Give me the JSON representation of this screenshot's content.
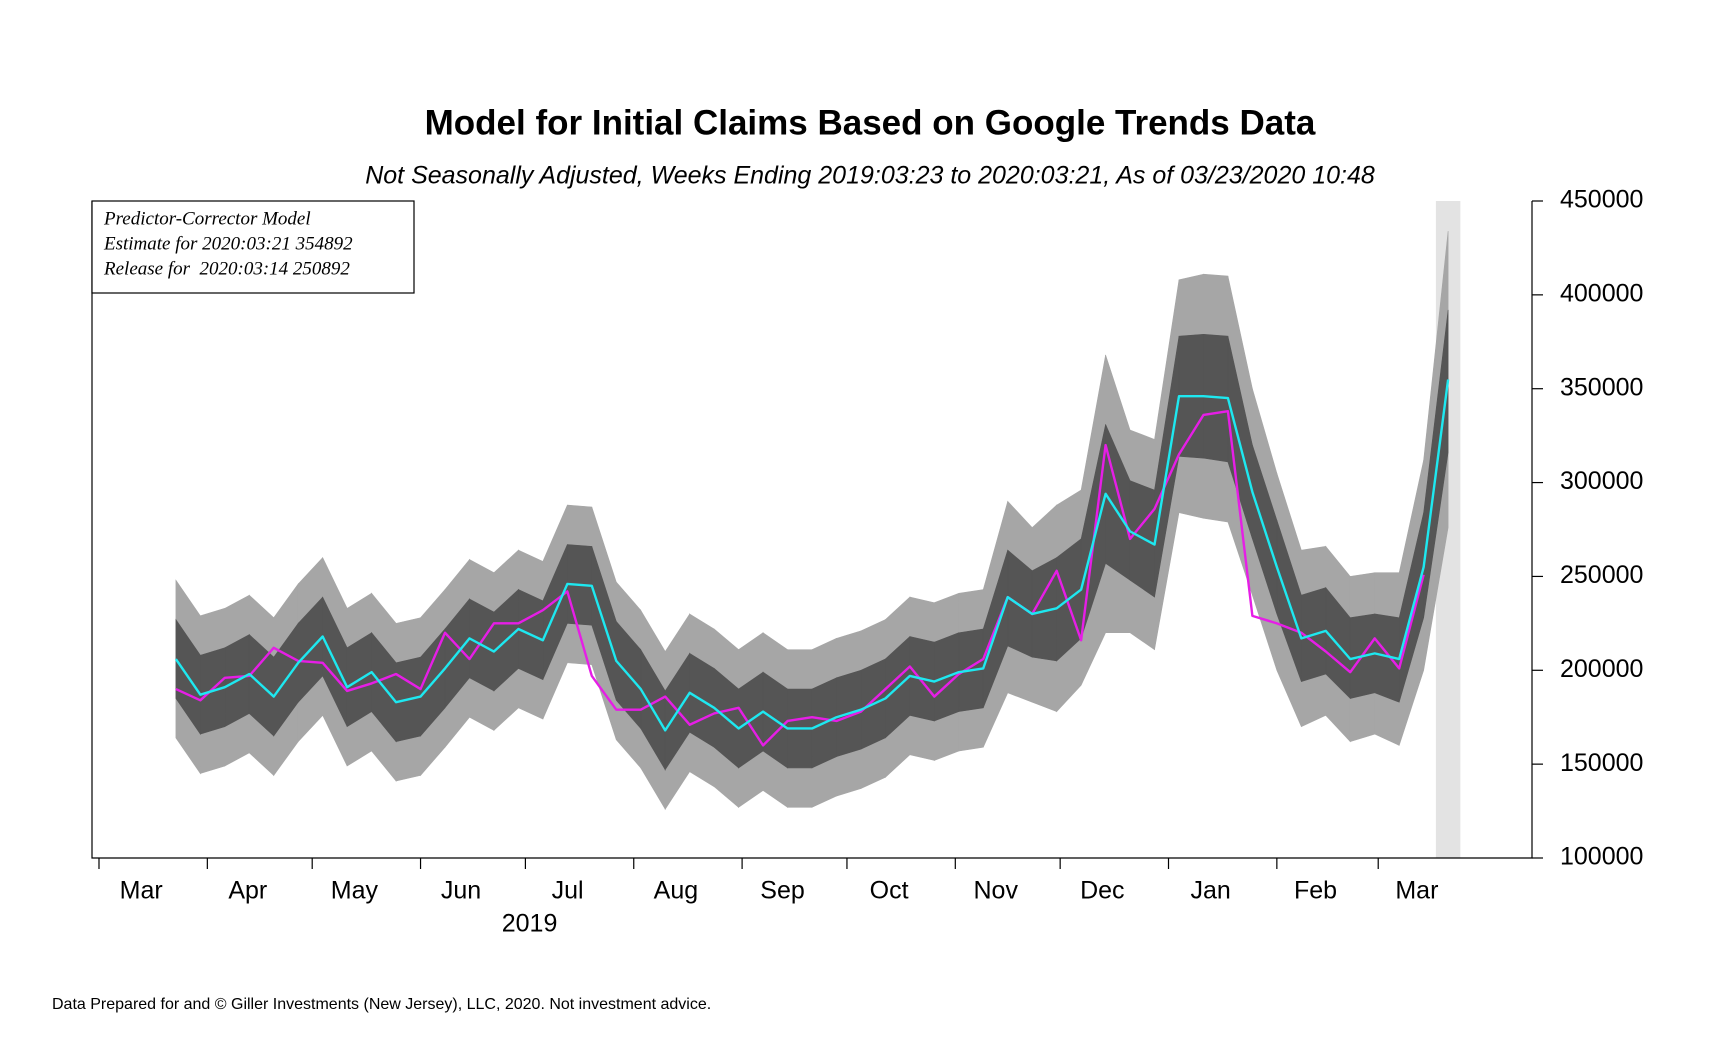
{
  "chart_data": {
    "type": "line",
    "title": "Model for Initial Claims Based on Google Trends Data",
    "subtitle": "Not Seasonally Adjusted, Weeks Ending 2019:03:23 to 2020:03:21, As of 03/23/2020 10:48",
    "annotation": [
      "Predictor-Corrector Model",
      "Estimate for 2020:03:21 354892",
      "Release for  2020:03:14 250892"
    ],
    "footer": "Data Prepared for and © Giller Investments (New Jersey), LLC, 2020. Not investment advice.",
    "year_label": "2019",
    "x": [
      "2019-03-23",
      "2019-03-30",
      "2019-04-06",
      "2019-04-13",
      "2019-04-20",
      "2019-04-27",
      "2019-05-04",
      "2019-05-11",
      "2019-05-18",
      "2019-05-25",
      "2019-06-01",
      "2019-06-08",
      "2019-06-15",
      "2019-06-22",
      "2019-06-29",
      "2019-07-06",
      "2019-07-13",
      "2019-07-20",
      "2019-07-27",
      "2019-08-03",
      "2019-08-10",
      "2019-08-17",
      "2019-08-24",
      "2019-08-31",
      "2019-09-07",
      "2019-09-14",
      "2019-09-21",
      "2019-09-28",
      "2019-10-05",
      "2019-10-12",
      "2019-10-19",
      "2019-10-26",
      "2019-11-02",
      "2019-11-09",
      "2019-11-16",
      "2019-11-23",
      "2019-11-30",
      "2019-12-07",
      "2019-12-14",
      "2019-12-21",
      "2019-12-28",
      "2020-01-04",
      "2020-01-11",
      "2020-01-18",
      "2020-01-25",
      "2020-02-01",
      "2020-02-08",
      "2020-02-15",
      "2020-02-22",
      "2020-02-29",
      "2020-03-07",
      "2020-03-14",
      "2020-03-21"
    ],
    "xlim": [
      "2019-02-27",
      "2020-04-14"
    ],
    "xticks": [
      {
        "value": "2019-03-01",
        "label": "Mar"
      },
      {
        "value": "2019-04-01",
        "label": "Apr"
      },
      {
        "value": "2019-05-01",
        "label": "May"
      },
      {
        "value": "2019-06-01",
        "label": "Jun"
      },
      {
        "value": "2019-07-01",
        "label": "Jul"
      },
      {
        "value": "2019-08-01",
        "label": "Aug"
      },
      {
        "value": "2019-09-01",
        "label": "Sep"
      },
      {
        "value": "2019-10-01",
        "label": "Oct"
      },
      {
        "value": "2019-11-01",
        "label": "Nov"
      },
      {
        "value": "2019-12-01",
        "label": "Dec"
      },
      {
        "value": "2020-01-01",
        "label": "Jan"
      },
      {
        "value": "2020-02-01",
        "label": "Feb"
      },
      {
        "value": "2020-03-01",
        "label": "Mar"
      }
    ],
    "ylim": [
      100000,
      450000
    ],
    "yticks": [
      100000,
      150000,
      200000,
      250000,
      300000,
      350000,
      400000,
      450000
    ],
    "highlight_color": "#e3e3e3",
    "bands": [
      {
        "color": "#a6a6a6",
        "upper": [
          248000,
          229000,
          233000,
          240000,
          228000,
          246000,
          260000,
          233000,
          241000,
          225000,
          228000,
          243000,
          259000,
          252000,
          264000,
          258000,
          288000,
          287000,
          247000,
          232000,
          210000,
          230000,
          222000,
          211000,
          220000,
          211000,
          211000,
          217000,
          221000,
          227000,
          239000,
          236000,
          241000,
          243000,
          290000,
          276000,
          288000,
          296000,
          368000,
          328000,
          323000,
          408000,
          411000,
          410000,
          350000,
          305000,
          264000,
          266000,
          250000,
          252000,
          252000,
          312000,
          434000
        ],
        "lower": [
          164000,
          145000,
          149000,
          156000,
          144000,
          162000,
          176000,
          149000,
          157000,
          141000,
          144000,
          159000,
          175000,
          168000,
          180000,
          174000,
          204000,
          203000,
          163000,
          148000,
          126000,
          146000,
          138000,
          127000,
          136000,
          127000,
          127000,
          133000,
          137000,
          143000,
          155000,
          152000,
          157000,
          159000,
          188000,
          183000,
          178000,
          192000,
          220000,
          220000,
          211000,
          284000,
          281000,
          279000,
          240000,
          200000,
          170000,
          176000,
          162000,
          166000,
          160000,
          200000,
          276000
        ]
      },
      {
        "color": "#555555",
        "upper": [
          227000,
          208000,
          212000,
          219000,
          207000,
          225000,
          239000,
          212000,
          220000,
          204000,
          207000,
          222000,
          238000,
          231000,
          243000,
          237000,
          267000,
          266000,
          226000,
          211000,
          189000,
          209000,
          201000,
          190000,
          199000,
          190000,
          190000,
          196000,
          200000,
          206000,
          218000,
          215000,
          220000,
          222000,
          264000,
          253000,
          260000,
          270000,
          331000,
          301000,
          296000,
          378000,
          379000,
          378000,
          320000,
          280000,
          240000,
          244000,
          228000,
          230000,
          228000,
          284000,
          392000
        ],
        "lower": [
          185000,
          166000,
          170000,
          177000,
          165000,
          183000,
          197000,
          170000,
          178000,
          162000,
          165000,
          180000,
          196000,
          189000,
          201000,
          195000,
          225000,
          224000,
          184000,
          169000,
          147000,
          167000,
          159000,
          148000,
          157000,
          148000,
          148000,
          154000,
          158000,
          164000,
          176000,
          173000,
          178000,
          180000,
          213000,
          207000,
          205000,
          217000,
          257000,
          248000,
          239000,
          314000,
          313000,
          311000,
          270000,
          230000,
          194000,
          198000,
          185000,
          188000,
          183000,
          228000,
          316000
        ]
      }
    ],
    "series": [
      {
        "color": "#e61ee6",
        "values": [
          190000,
          184000,
          196000,
          197000,
          212000,
          205000,
          204000,
          189000,
          193000,
          198000,
          190000,
          220000,
          206000,
          225000,
          225000,
          232000,
          242000,
          197000,
          179000,
          179000,
          186000,
          171000,
          177000,
          180000,
          160000,
          173000,
          175000,
          173000,
          178000,
          190000,
          202000,
          186000,
          198000,
          206000,
          239000,
          230000,
          253000,
          216000,
          320000,
          270000,
          286000,
          315000,
          336000,
          338000,
          229000,
          225000,
          220000,
          210000,
          199000,
          217000,
          201000,
          250892,
          null
        ]
      },
      {
        "color": "#1ee8f0",
        "values": [
          206000,
          187000,
          191000,
          198000,
          186000,
          204000,
          218000,
          191000,
          199000,
          183000,
          186000,
          201000,
          217000,
          210000,
          222000,
          216000,
          246000,
          245000,
          205000,
          190000,
          168000,
          188000,
          180000,
          169000,
          178000,
          169000,
          169000,
          175000,
          179000,
          185000,
          197000,
          194000,
          199000,
          201000,
          239000,
          230000,
          233000,
          243000,
          294000,
          274000,
          267000,
          346000,
          346000,
          345000,
          295000,
          255000,
          217000,
          221000,
          206000,
          209000,
          206000,
          255000,
          354892
        ]
      }
    ]
  }
}
